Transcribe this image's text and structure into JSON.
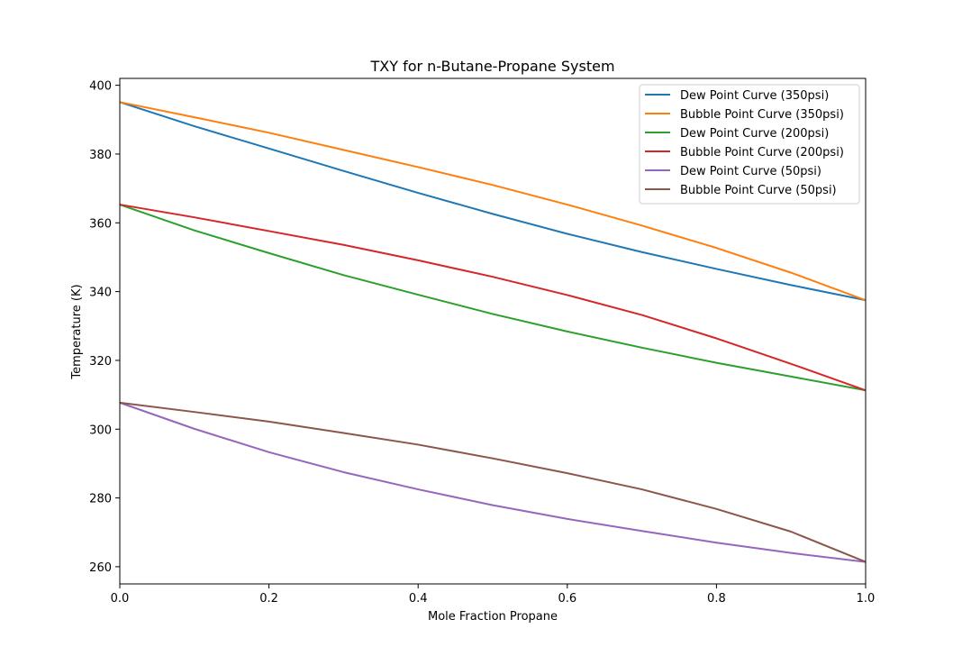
{
  "chart_data": {
    "type": "line",
    "title": "TXY for n-Butane-Propane System",
    "xlabel": "Mole Fraction Propane",
    "ylabel": "Temperature (K)",
    "xlim": [
      0.0,
      1.0
    ],
    "ylim": [
      255,
      402
    ],
    "xticks": [
      0.0,
      0.2,
      0.4,
      0.6,
      0.8,
      1.0
    ],
    "xtick_labels": [
      "0.0",
      "0.2",
      "0.4",
      "0.6",
      "0.8",
      "1.0"
    ],
    "yticks": [
      260,
      280,
      300,
      320,
      340,
      360,
      380,
      400
    ],
    "ytick_labels": [
      "260",
      "280",
      "300",
      "320",
      "340",
      "360",
      "380",
      "400"
    ],
    "grid": false,
    "legend_position": "top-right",
    "x": [
      0.0,
      0.1,
      0.2,
      0.3,
      0.4,
      0.5,
      0.6,
      0.7,
      0.8,
      0.9,
      1.0
    ],
    "series": [
      {
        "name": "Dew Point Curve (350psi)",
        "color": "#1f77b4",
        "values": [
          395.1,
          388.1,
          381.6,
          375.1,
          368.7,
          362.6,
          356.8,
          351.5,
          346.6,
          341.9,
          337.5
        ]
      },
      {
        "name": "Bubble Point Curve (350psi)",
        "color": "#ff7f0e",
        "values": [
          395.1,
          390.7,
          386.2,
          381.2,
          376.2,
          371.0,
          365.3,
          359.2,
          352.7,
          345.5,
          337.5
        ]
      },
      {
        "name": "Dew Point Curve (200psi)",
        "color": "#2ca02c",
        "values": [
          365.3,
          357.8,
          351.2,
          344.8,
          339.1,
          333.5,
          328.4,
          323.7,
          319.3,
          315.3,
          311.3
        ]
      },
      {
        "name": "Bubble Point Curve (200psi)",
        "color": "#d62728",
        "values": [
          365.3,
          361.6,
          357.6,
          353.6,
          349.1,
          344.3,
          339.0,
          333.2,
          326.4,
          319.0,
          311.3
        ]
      },
      {
        "name": "Dew Point Curve (50psi)",
        "color": "#9467bd",
        "values": [
          307.7,
          300.1,
          293.3,
          287.5,
          282.5,
          277.9,
          273.9,
          270.4,
          267.0,
          264.0,
          261.4
        ]
      },
      {
        "name": "Bubble Point Curve (50psi)",
        "color": "#8c564b",
        "values": [
          307.7,
          305.0,
          302.2,
          298.9,
          295.5,
          291.5,
          287.2,
          282.5,
          276.8,
          270.2,
          261.4
        ]
      }
    ]
  }
}
